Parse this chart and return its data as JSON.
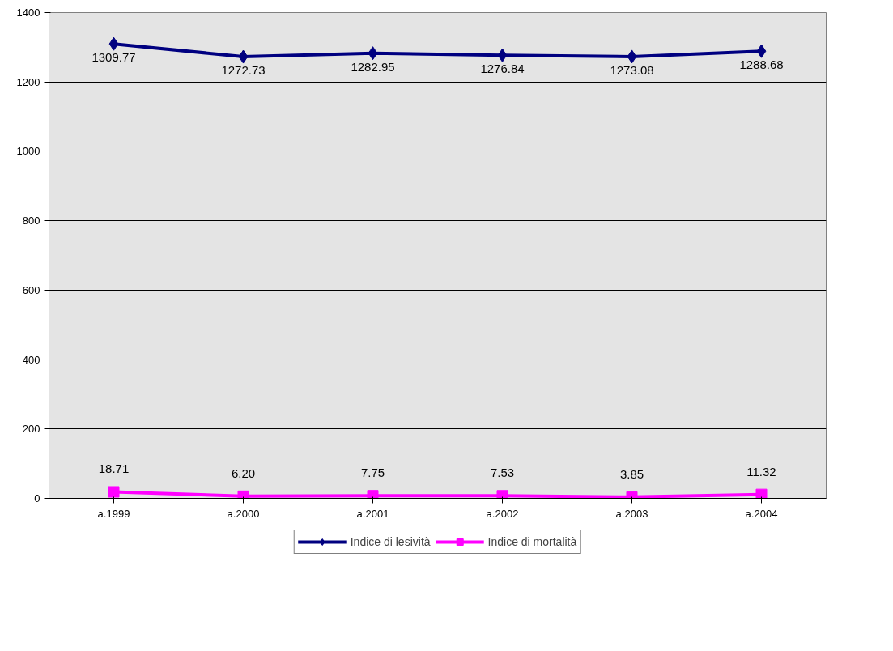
{
  "chart_data": {
    "type": "line",
    "categories": [
      "a.1999",
      "a.2000",
      "a.2001",
      "a.2002",
      "a.2003",
      "a.2004"
    ],
    "series": [
      {
        "name": "Indice di lesività",
        "color": "#000080",
        "marker": "diamond",
        "values": [
          1309.77,
          1272.73,
          1282.95,
          1276.84,
          1273.08,
          1288.68
        ],
        "value_labels": [
          "1309.77",
          "1272.73",
          "1282.95",
          "1276.84",
          "1273.08",
          "1288.68"
        ]
      },
      {
        "name": "Indice di mortalità",
        "color": "#ff00ff",
        "marker": "square",
        "values": [
          18.71,
          6.2,
          7.75,
          7.53,
          3.85,
          11.32
        ],
        "value_labels": [
          "18.71",
          "6.20",
          "7.75",
          "7.53",
          "3.85",
          "11.32"
        ]
      }
    ],
    "ylim": [
      0,
      1400
    ],
    "yticks": [
      0,
      200,
      400,
      600,
      800,
      1000,
      1200,
      1400
    ],
    "grid": "y",
    "legend": "bottom"
  }
}
